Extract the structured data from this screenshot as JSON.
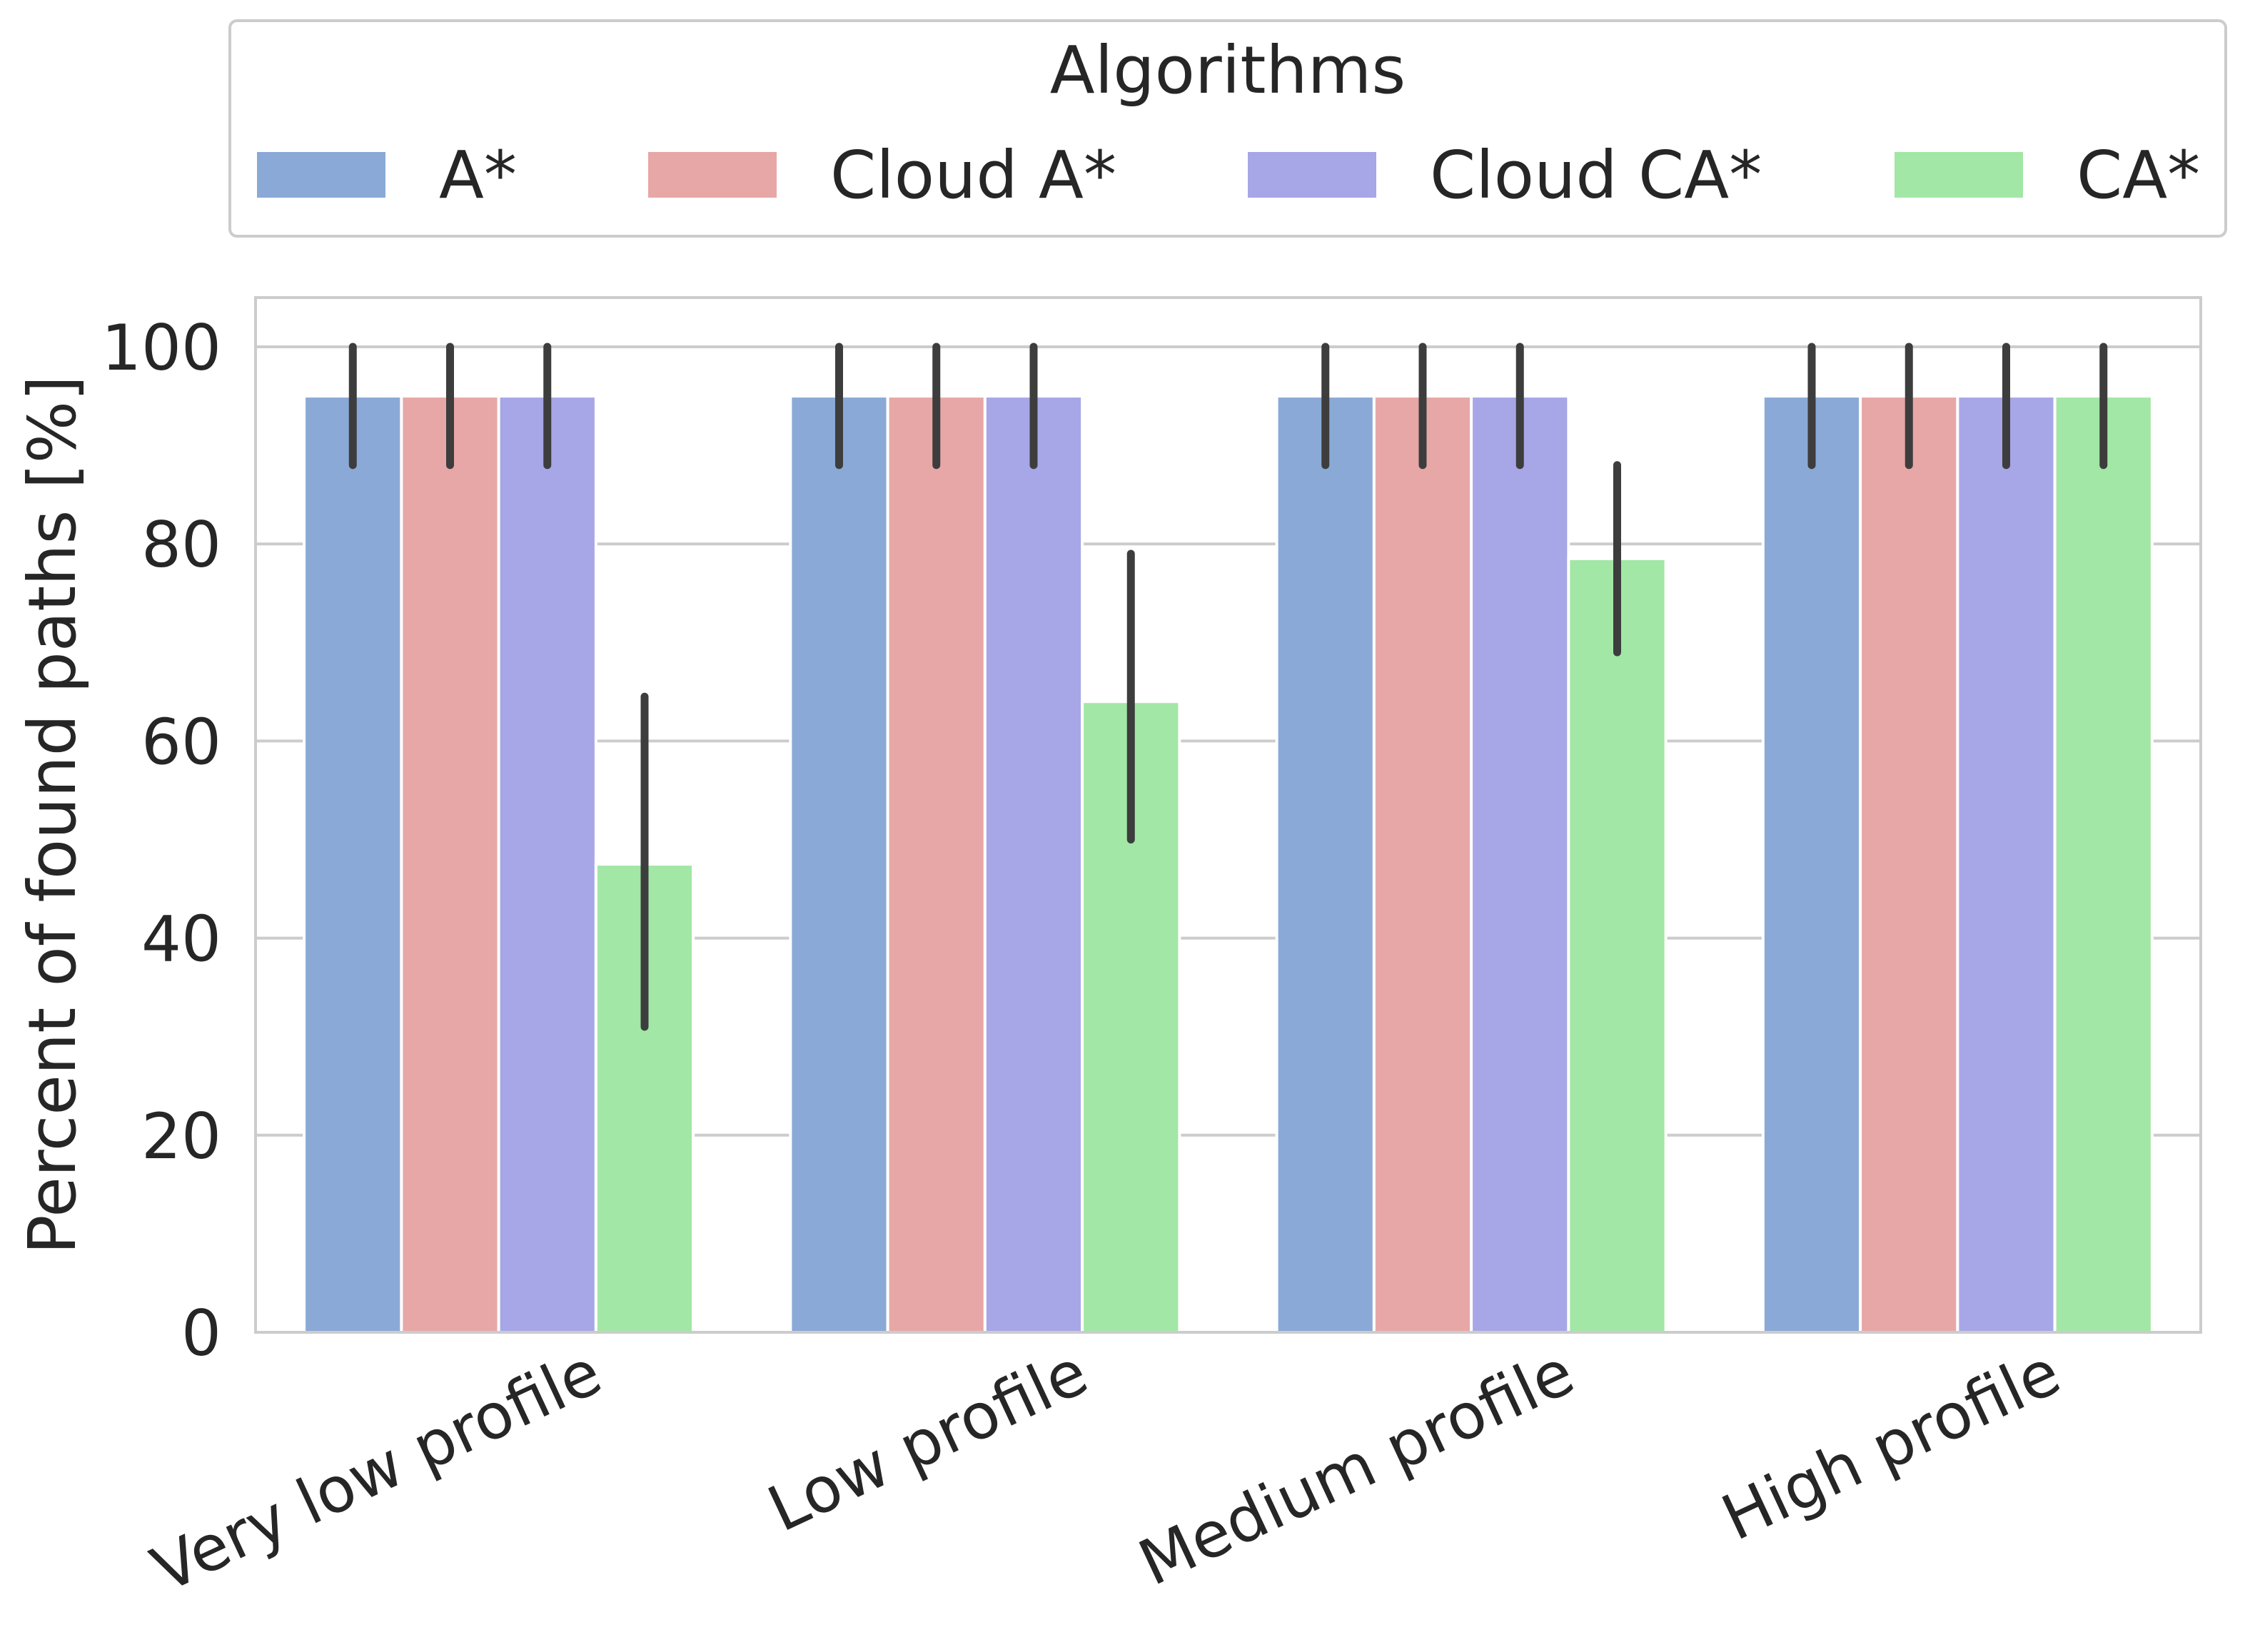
{
  "chart_data": {
    "type": "bar",
    "title": "",
    "xlabel": "",
    "ylabel": "Percent of found paths [%]",
    "ylim": [
      0,
      105
    ],
    "yticks": [
      0,
      20,
      40,
      60,
      80,
      100
    ],
    "grid": true,
    "legend": {
      "title": "Algorithms",
      "placement": "top"
    },
    "categories": [
      "Very low profile",
      "Low profile",
      "Medium profile",
      "High profile"
    ],
    "series": [
      {
        "name": "A*",
        "color": "#8aa9d6",
        "values": [
          95,
          95,
          95,
          95
        ],
        "err_low": [
          88,
          88,
          88,
          88
        ],
        "err_high": [
          100,
          100,
          100,
          100
        ]
      },
      {
        "name": "Cloud A*",
        "color": "#e7a7a6",
        "values": [
          95,
          95,
          95,
          95
        ],
        "err_low": [
          88,
          88,
          88,
          88
        ],
        "err_high": [
          100,
          100,
          100,
          100
        ]
      },
      {
        "name": "Cloud CA*",
        "color": "#a7a6e7",
        "values": [
          95,
          95,
          95,
          95
        ],
        "err_low": [
          88,
          88,
          88,
          88
        ],
        "err_high": [
          100,
          100,
          100,
          100
        ]
      },
      {
        "name": "CA*",
        "color": "#a2e7a5",
        "values": [
          47.5,
          64,
          78.5,
          95
        ],
        "err_low": [
          31,
          50,
          69,
          88
        ],
        "err_high": [
          64.5,
          79,
          88,
          100
        ]
      }
    ]
  }
}
